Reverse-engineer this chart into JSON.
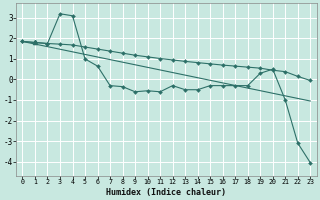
{
  "xlabel": "Humidex (Indice chaleur)",
  "bg_color": "#c8e8e0",
  "grid_color": "#ffffff",
  "line_color": "#2d7068",
  "xlim": [
    -0.5,
    23.5
  ],
  "ylim": [
    -4.7,
    3.7
  ],
  "yticks": [
    -4,
    -3,
    -2,
    -1,
    0,
    1,
    2,
    3
  ],
  "xticks": [
    0,
    1,
    2,
    3,
    4,
    5,
    6,
    7,
    8,
    9,
    10,
    11,
    12,
    13,
    14,
    15,
    16,
    17,
    18,
    19,
    20,
    21,
    22,
    23
  ],
  "series1_x": [
    0,
    1,
    2,
    3,
    4,
    5,
    6,
    7,
    8,
    9,
    10,
    11,
    12,
    13,
    14,
    15,
    16,
    17,
    18,
    19,
    20,
    21,
    22,
    23
  ],
  "series1_y": [
    1.85,
    1.8,
    1.75,
    3.2,
    3.1,
    1.0,
    0.65,
    -0.3,
    -0.35,
    -0.6,
    -0.55,
    -0.6,
    -0.3,
    -0.5,
    -0.5,
    -0.3,
    -0.3,
    -0.3,
    -0.3,
    0.3,
    0.5,
    -1.0,
    -3.1,
    -4.05
  ],
  "series2_x": [
    0,
    1,
    2,
    3,
    4,
    5,
    6,
    7,
    8,
    9,
    10,
    11,
    12,
    13,
    14,
    15,
    16,
    17,
    18,
    19,
    20,
    21,
    22,
    23
  ],
  "series2_y": [
    1.85,
    1.8,
    1.75,
    1.72,
    1.68,
    1.58,
    1.48,
    1.38,
    1.28,
    1.18,
    1.1,
    1.02,
    0.95,
    0.88,
    0.82,
    0.76,
    0.7,
    0.65,
    0.6,
    0.55,
    0.45,
    0.38,
    0.15,
    -0.05
  ],
  "series3_x": [
    0,
    23
  ],
  "series3_y": [
    1.85,
    -1.05
  ],
  "triangle_x": [
    1
  ],
  "triangle_y": [
    1.8
  ]
}
